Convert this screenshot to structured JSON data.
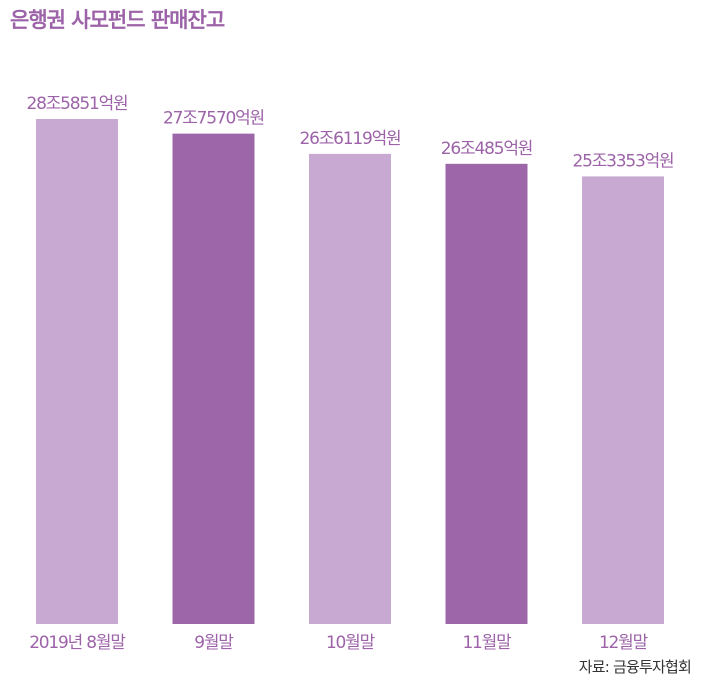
{
  "title": "은행권 사모펀드 판매잔고",
  "source": "자료: 금융투자협회",
  "colors": {
    "light": "#c8a9d1",
    "dark": "#9c66a8",
    "text": "#9c63a8"
  },
  "chart_data": {
    "type": "bar",
    "title": "은행권 사모펀드 판매잔고",
    "categories": [
      "2019년 8월말",
      "9월말",
      "10월말",
      "11월말",
      "12월말"
    ],
    "values": [
      285851,
      277570,
      266119,
      260485,
      253353
    ],
    "value_labels": [
      "28조5851억원",
      "27조7570억원",
      "26조6119억원",
      "26조485억원",
      "25조3353억원"
    ],
    "bar_colors": [
      "#c8a9d1",
      "#9c66a8",
      "#c8a9d1",
      "#9c66a8",
      "#c8a9d1"
    ],
    "unit": "억원",
    "xlabel": "",
    "ylabel": "",
    "ylim": [
      0,
      285851
    ],
    "grid": false
  }
}
